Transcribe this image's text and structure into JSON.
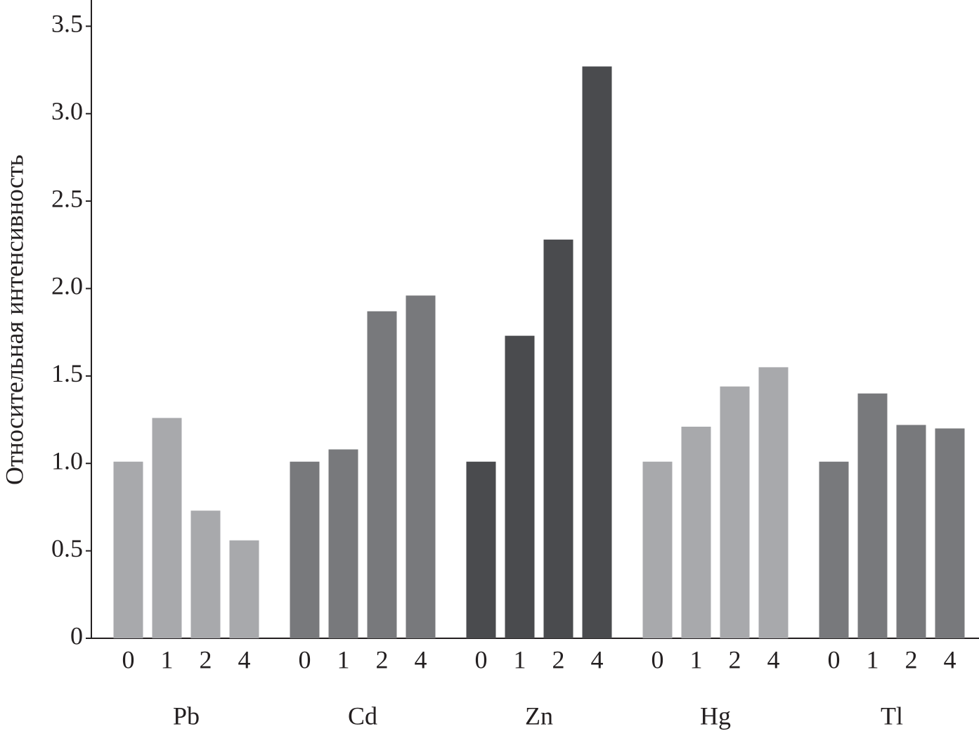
{
  "chart_data": {
    "type": "bar",
    "y_label": "Относительная интенсивность",
    "categories": [
      "0",
      "1",
      "2",
      "4"
    ],
    "series": [
      {
        "name": "Pb",
        "color": "#a8a9ac",
        "values": [
          1.01,
          1.26,
          0.73,
          0.56
        ]
      },
      {
        "name": "Cd",
        "color": "#78797c",
        "values": [
          1.01,
          1.08,
          1.87,
          1.96
        ]
      },
      {
        "name": "Zn",
        "color": "#4a4b4e",
        "values": [
          1.01,
          1.73,
          2.28,
          3.27
        ]
      },
      {
        "name": "Hg",
        "color": "#a8a9ac",
        "values": [
          1.01,
          1.21,
          1.44,
          1.55
        ]
      },
      {
        "name": "Tl",
        "color": "#78797c",
        "values": [
          1.01,
          1.4,
          1.22,
          1.2
        ]
      }
    ],
    "ylim": [
      0,
      3.65
    ],
    "yticks": [
      0,
      0.5,
      {
        "value": 1,
        "label": "1.0"
      },
      1.5,
      {
        "value": 2,
        "label": "2.0"
      },
      2.5,
      {
        "value": 3,
        "label": "3.0"
      },
      3.5
    ]
  }
}
